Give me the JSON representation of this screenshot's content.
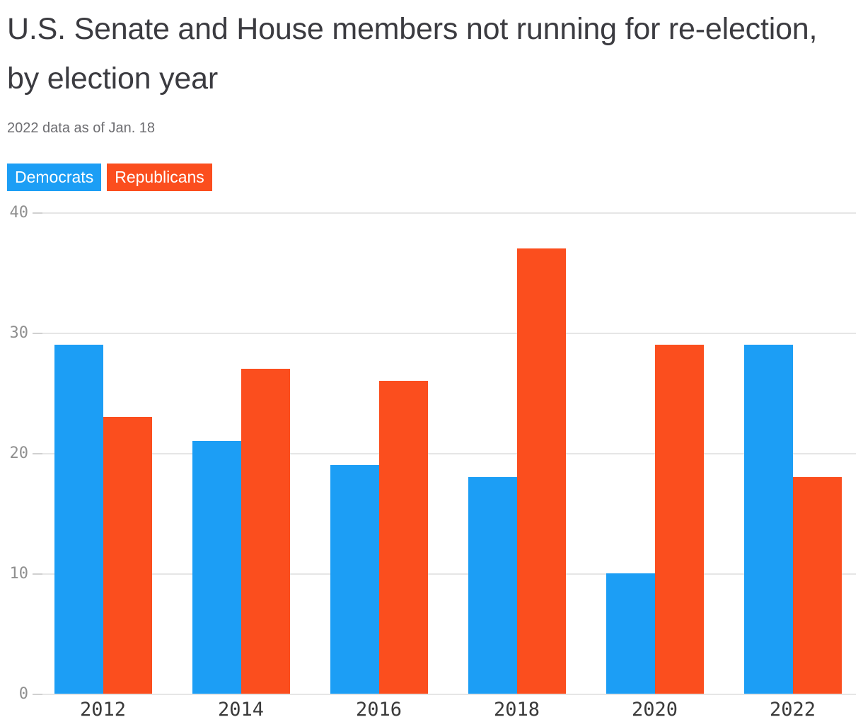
{
  "title": "U.S. Senate and House members not running for re-election, by election year",
  "subtitle": "2022 data as of Jan. 18",
  "legend": [
    {
      "label": "Democrats",
      "color": "#1c9ef5"
    },
    {
      "label": "Republicans",
      "color": "#fb4e1e"
    }
  ],
  "chart_data": {
    "type": "bar",
    "title": "U.S. Senate and House members not running for re-election, by election year",
    "subtitle": "2022 data as of Jan. 18",
    "categories": [
      "2012",
      "2014",
      "2016",
      "2018",
      "2020",
      "2022"
    ],
    "series": [
      {
        "name": "Democrats",
        "color": "#1c9ef5",
        "values": [
          29,
          21,
          19,
          18,
          10,
          29
        ]
      },
      {
        "name": "Republicans",
        "color": "#fb4e1e",
        "values": [
          23,
          27,
          26,
          37,
          29,
          18
        ]
      }
    ],
    "ylim": [
      0,
      40
    ],
    "yticks": [
      0,
      10,
      20,
      30,
      40
    ],
    "grid": true,
    "legend_position": "top-left",
    "xlabel": "",
    "ylabel": ""
  },
  "colors": {
    "democrat_blue": "#1c9ef5",
    "republican_red": "#fb4e1e",
    "title_text": "#3b3b40",
    "subtitle_text": "#6e6e72",
    "y_axis_label": "#8f8f8f",
    "x_axis_label": "#3a3a3a",
    "gridline": "#e6e6e6",
    "background": "#ffffff"
  }
}
